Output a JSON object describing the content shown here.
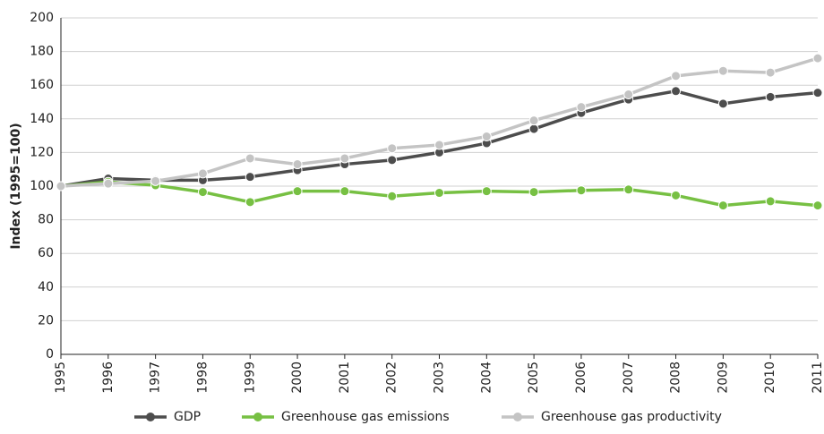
{
  "chart_data": {
    "type": "line",
    "y_label": "Index (1995=100)",
    "categories": [
      "1995",
      "1996",
      "1997",
      "1998",
      "1999",
      "2000",
      "2001",
      "2002",
      "2003",
      "2004",
      "2005",
      "2006",
      "2007",
      "2008",
      "2009",
      "2010",
      "2011"
    ],
    "series": [
      {
        "name": "GDP",
        "color": "#4d4d4d",
        "values": [
          100,
          104.5,
          103.5,
          103.5,
          105.5,
          109.5,
          113,
          115.5,
          120,
          125.5,
          134,
          143.5,
          151.5,
          156.5,
          149,
          153,
          155.5
        ]
      },
      {
        "name": "Greenhouse gas emissions",
        "color": "#77c043",
        "values": [
          100,
          102.5,
          100.5,
          96.5,
          90.5,
          97,
          97,
          94,
          96,
          97,
          96.5,
          97.5,
          98,
          94.5,
          88.5,
          91,
          88.5
        ]
      },
      {
        "name": "Greenhouse gas productivity",
        "color": "#c4c4c4",
        "values": [
          100,
          101.5,
          103,
          107.5,
          116.5,
          113,
          116.5,
          122.5,
          124.5,
          129.5,
          139,
          147,
          154.5,
          165.5,
          168.5,
          167.5,
          176
        ]
      }
    ],
    "ylim": [
      0,
      200
    ],
    "yticks": [
      0,
      20,
      40,
      60,
      80,
      100,
      120,
      140,
      160,
      180,
      200
    ],
    "grid": true,
    "legend": "bottom"
  }
}
